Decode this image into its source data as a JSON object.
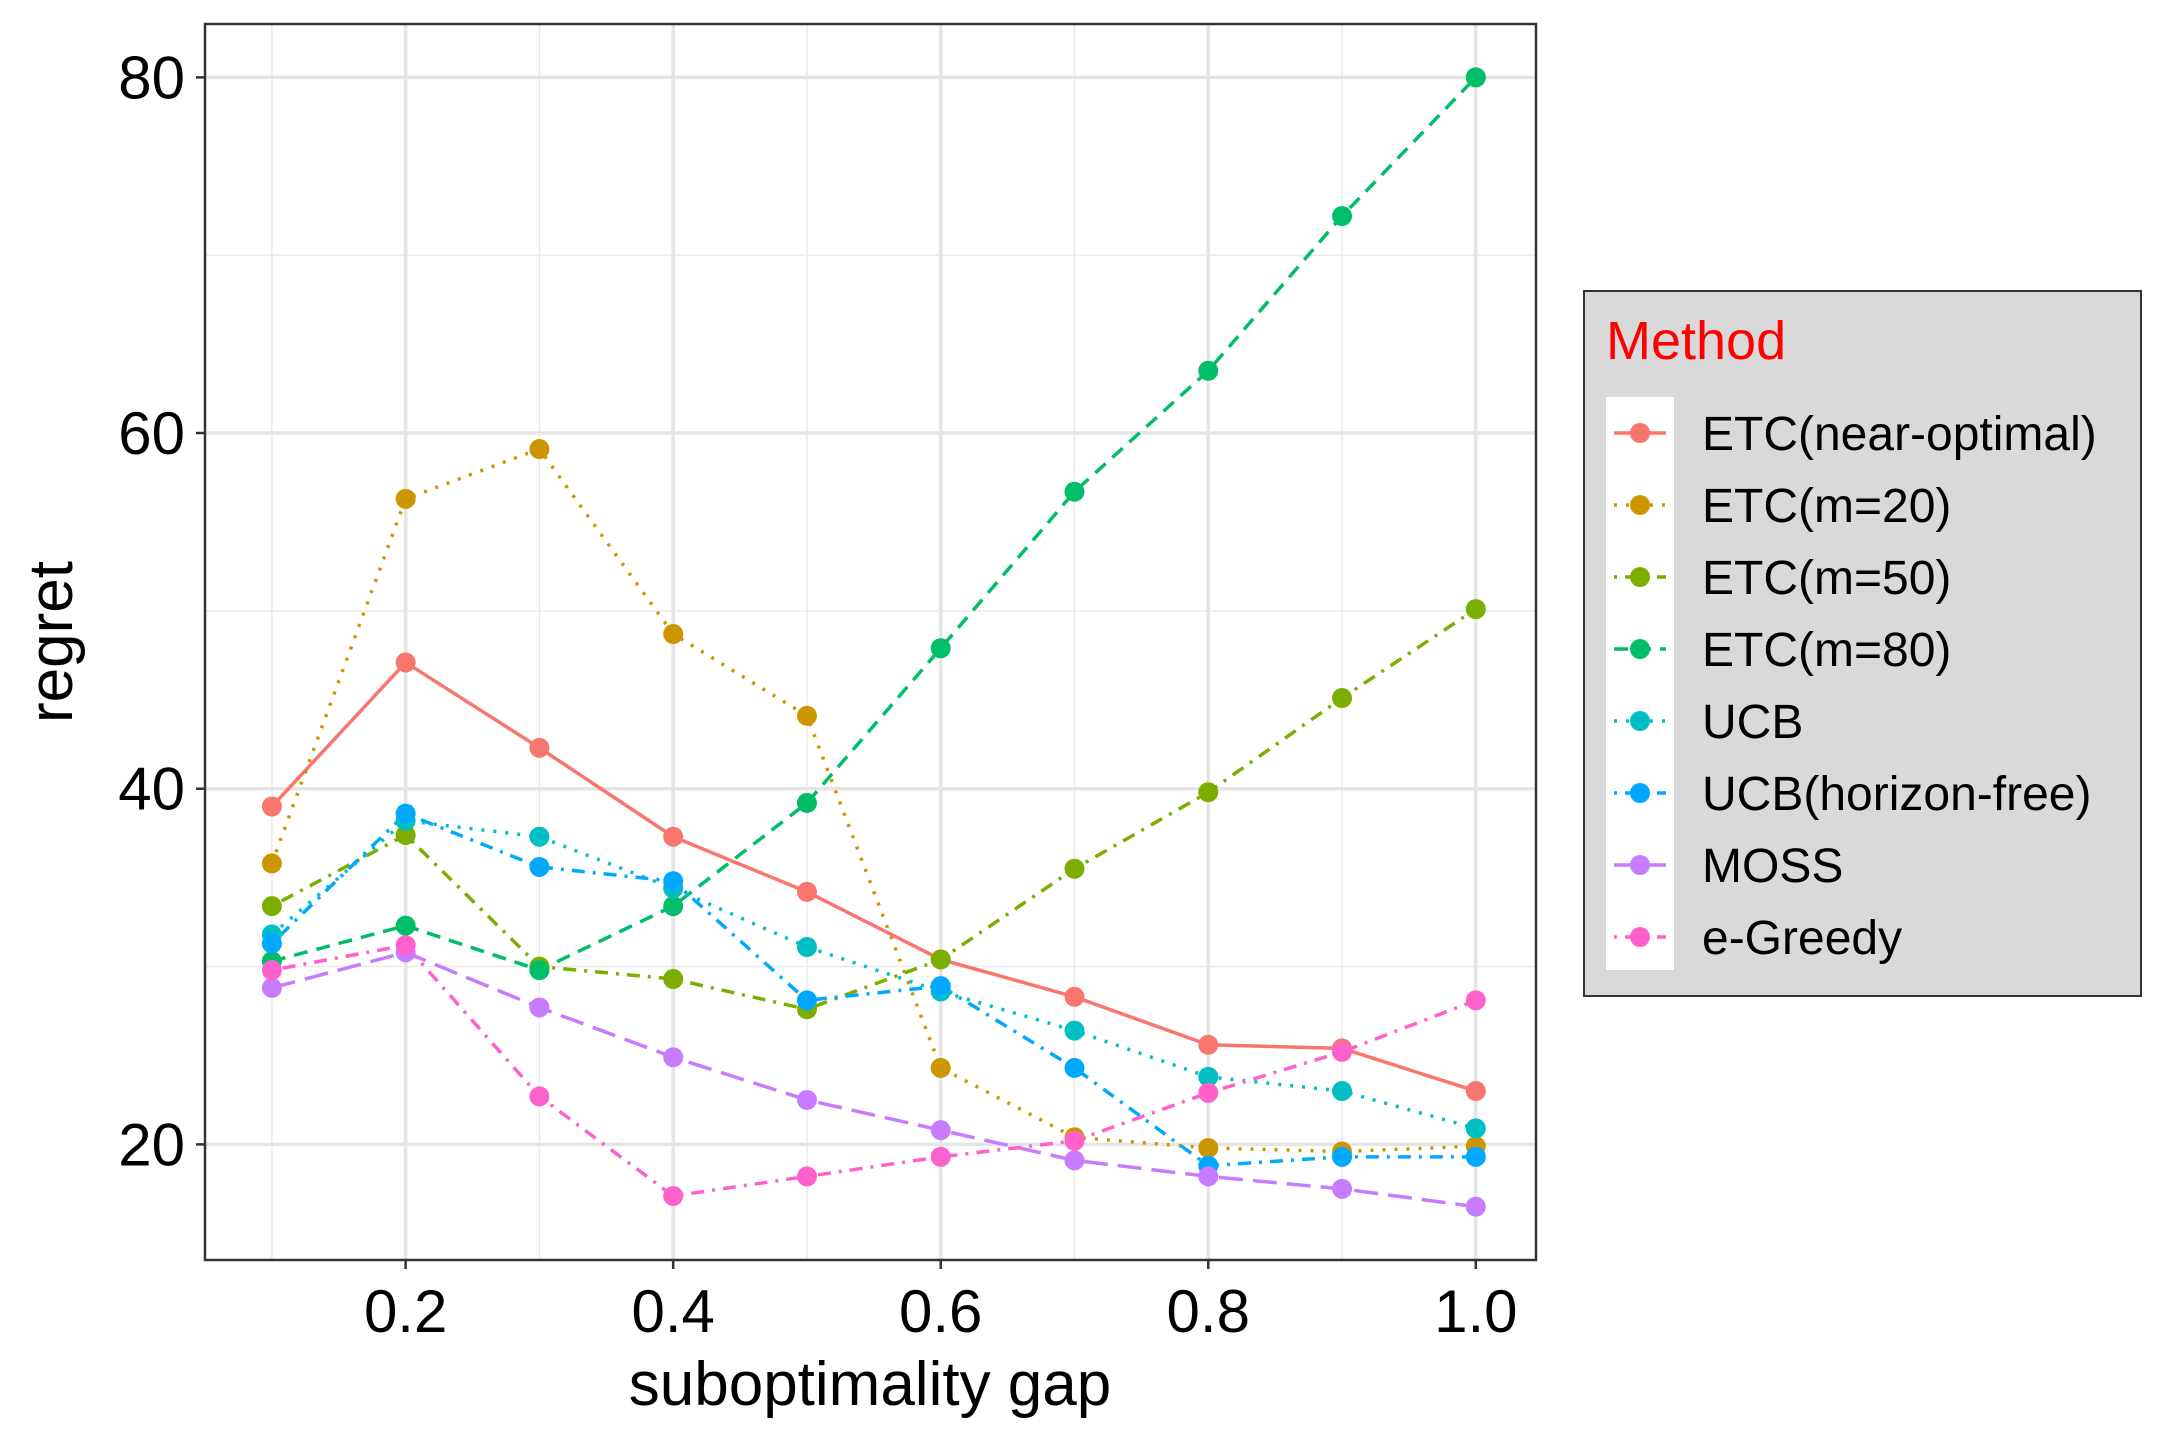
{
  "chart_data": {
    "type": "line",
    "xlabel": "suboptimality gap",
    "ylabel": "regret",
    "x": [
      0.1,
      0.2,
      0.3,
      0.4,
      0.5,
      0.6,
      0.7,
      0.8,
      0.9,
      1.0
    ],
    "xlim": [
      0.05,
      1.045
    ],
    "ylim": [
      13.5,
      83
    ],
    "xticks": [
      0.2,
      0.4,
      0.6,
      0.8,
      1.0
    ],
    "xtick_labels": [
      "0.2",
      "0.4",
      "0.6",
      "0.8",
      "1.0"
    ],
    "yticks": [
      20,
      40,
      60,
      80
    ],
    "ytick_labels": [
      "20",
      "40",
      "60",
      "80"
    ],
    "grid": true,
    "legend": {
      "title": "Method",
      "title_color": "#ff0000",
      "position": "right"
    },
    "series": [
      {
        "name": "ETC(near-optimal)",
        "color": "#F8766D",
        "dash": "solid",
        "values": [
          39.0,
          47.1,
          42.3,
          37.3,
          34.2,
          30.4,
          28.3,
          25.6,
          25.4,
          23.0
        ]
      },
      {
        "name": "ETC(m=20)",
        "color": "#CD9600",
        "dash": "dotted",
        "values": [
          35.8,
          56.3,
          59.1,
          48.7,
          44.1,
          24.3,
          20.4,
          19.8,
          19.6,
          19.9
        ]
      },
      {
        "name": "ETC(m=50)",
        "color": "#7CAE00",
        "dash": "dotdash",
        "values": [
          33.4,
          37.4,
          30.0,
          29.3,
          27.6,
          30.4,
          35.5,
          39.8,
          45.1,
          50.1
        ]
      },
      {
        "name": "ETC(m=80)",
        "color": "#00BE67",
        "dash": "dashed",
        "values": [
          30.3,
          32.3,
          29.8,
          33.4,
          39.2,
          47.9,
          56.7,
          63.5,
          72.2,
          80.0
        ]
      },
      {
        "name": "UCB",
        "color": "#00BFC4",
        "dash": "dotted",
        "values": [
          31.8,
          38.2,
          37.3,
          34.4,
          31.1,
          28.6,
          26.4,
          23.8,
          23.0,
          20.9
        ]
      },
      {
        "name": "UCB(horizon-free)",
        "color": "#00A9FF",
        "dash": "dotdash",
        "values": [
          31.3,
          38.6,
          35.6,
          34.8,
          28.1,
          28.9,
          24.3,
          18.8,
          19.3,
          19.3
        ]
      },
      {
        "name": "MOSS",
        "color": "#C77CFF",
        "dash": "longdash",
        "values": [
          28.8,
          30.8,
          27.7,
          24.9,
          22.5,
          20.8,
          19.1,
          18.2,
          17.5,
          16.5
        ]
      },
      {
        "name": "e-Greedy",
        "color": "#FF61CC",
        "dash": "dotdash",
        "values": [
          29.8,
          31.2,
          22.7,
          17.1,
          18.2,
          19.3,
          20.2,
          22.9,
          25.2,
          28.1
        ]
      }
    ]
  }
}
